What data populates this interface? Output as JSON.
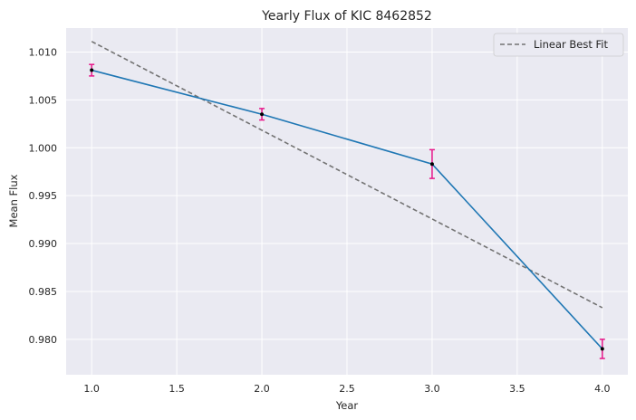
{
  "chart_data": {
    "type": "line",
    "title": "Yearly Flux of KIC 8462852",
    "xlabel": "Year",
    "ylabel": "Mean Flux",
    "xlim": [
      0.85,
      4.15
    ],
    "ylim": [
      0.9763,
      1.0125
    ],
    "xticks": [
      "1.0",
      "1.5",
      "2.0",
      "2.5",
      "3.0",
      "3.5",
      "4.0"
    ],
    "yticks": [
      "0.980",
      "0.985",
      "0.990",
      "0.995",
      "1.000",
      "1.005",
      "1.010"
    ],
    "grid": true,
    "legend_position": "top-right",
    "series": [
      {
        "x": [
          1.0,
          2.0,
          3.0,
          4.0
        ],
        "y": [
          1.0081,
          1.0035,
          0.9983,
          0.979
        ],
        "yerr": [
          0.0006,
          0.0006,
          0.0015,
          0.001
        ],
        "color": "#1f77b4",
        "errorbar_color": "#e8178a",
        "marker_color": "#000000"
      },
      {
        "name": "Linear Best Fit",
        "x": [
          1.0,
          4.0
        ],
        "y": [
          1.0111,
          0.9833
        ],
        "color": "#737373",
        "dashed": true
      }
    ]
  },
  "colors": {
    "plot_background": "#eaeaf2",
    "grid": "#ffffff",
    "page_background": "#ffffff"
  }
}
